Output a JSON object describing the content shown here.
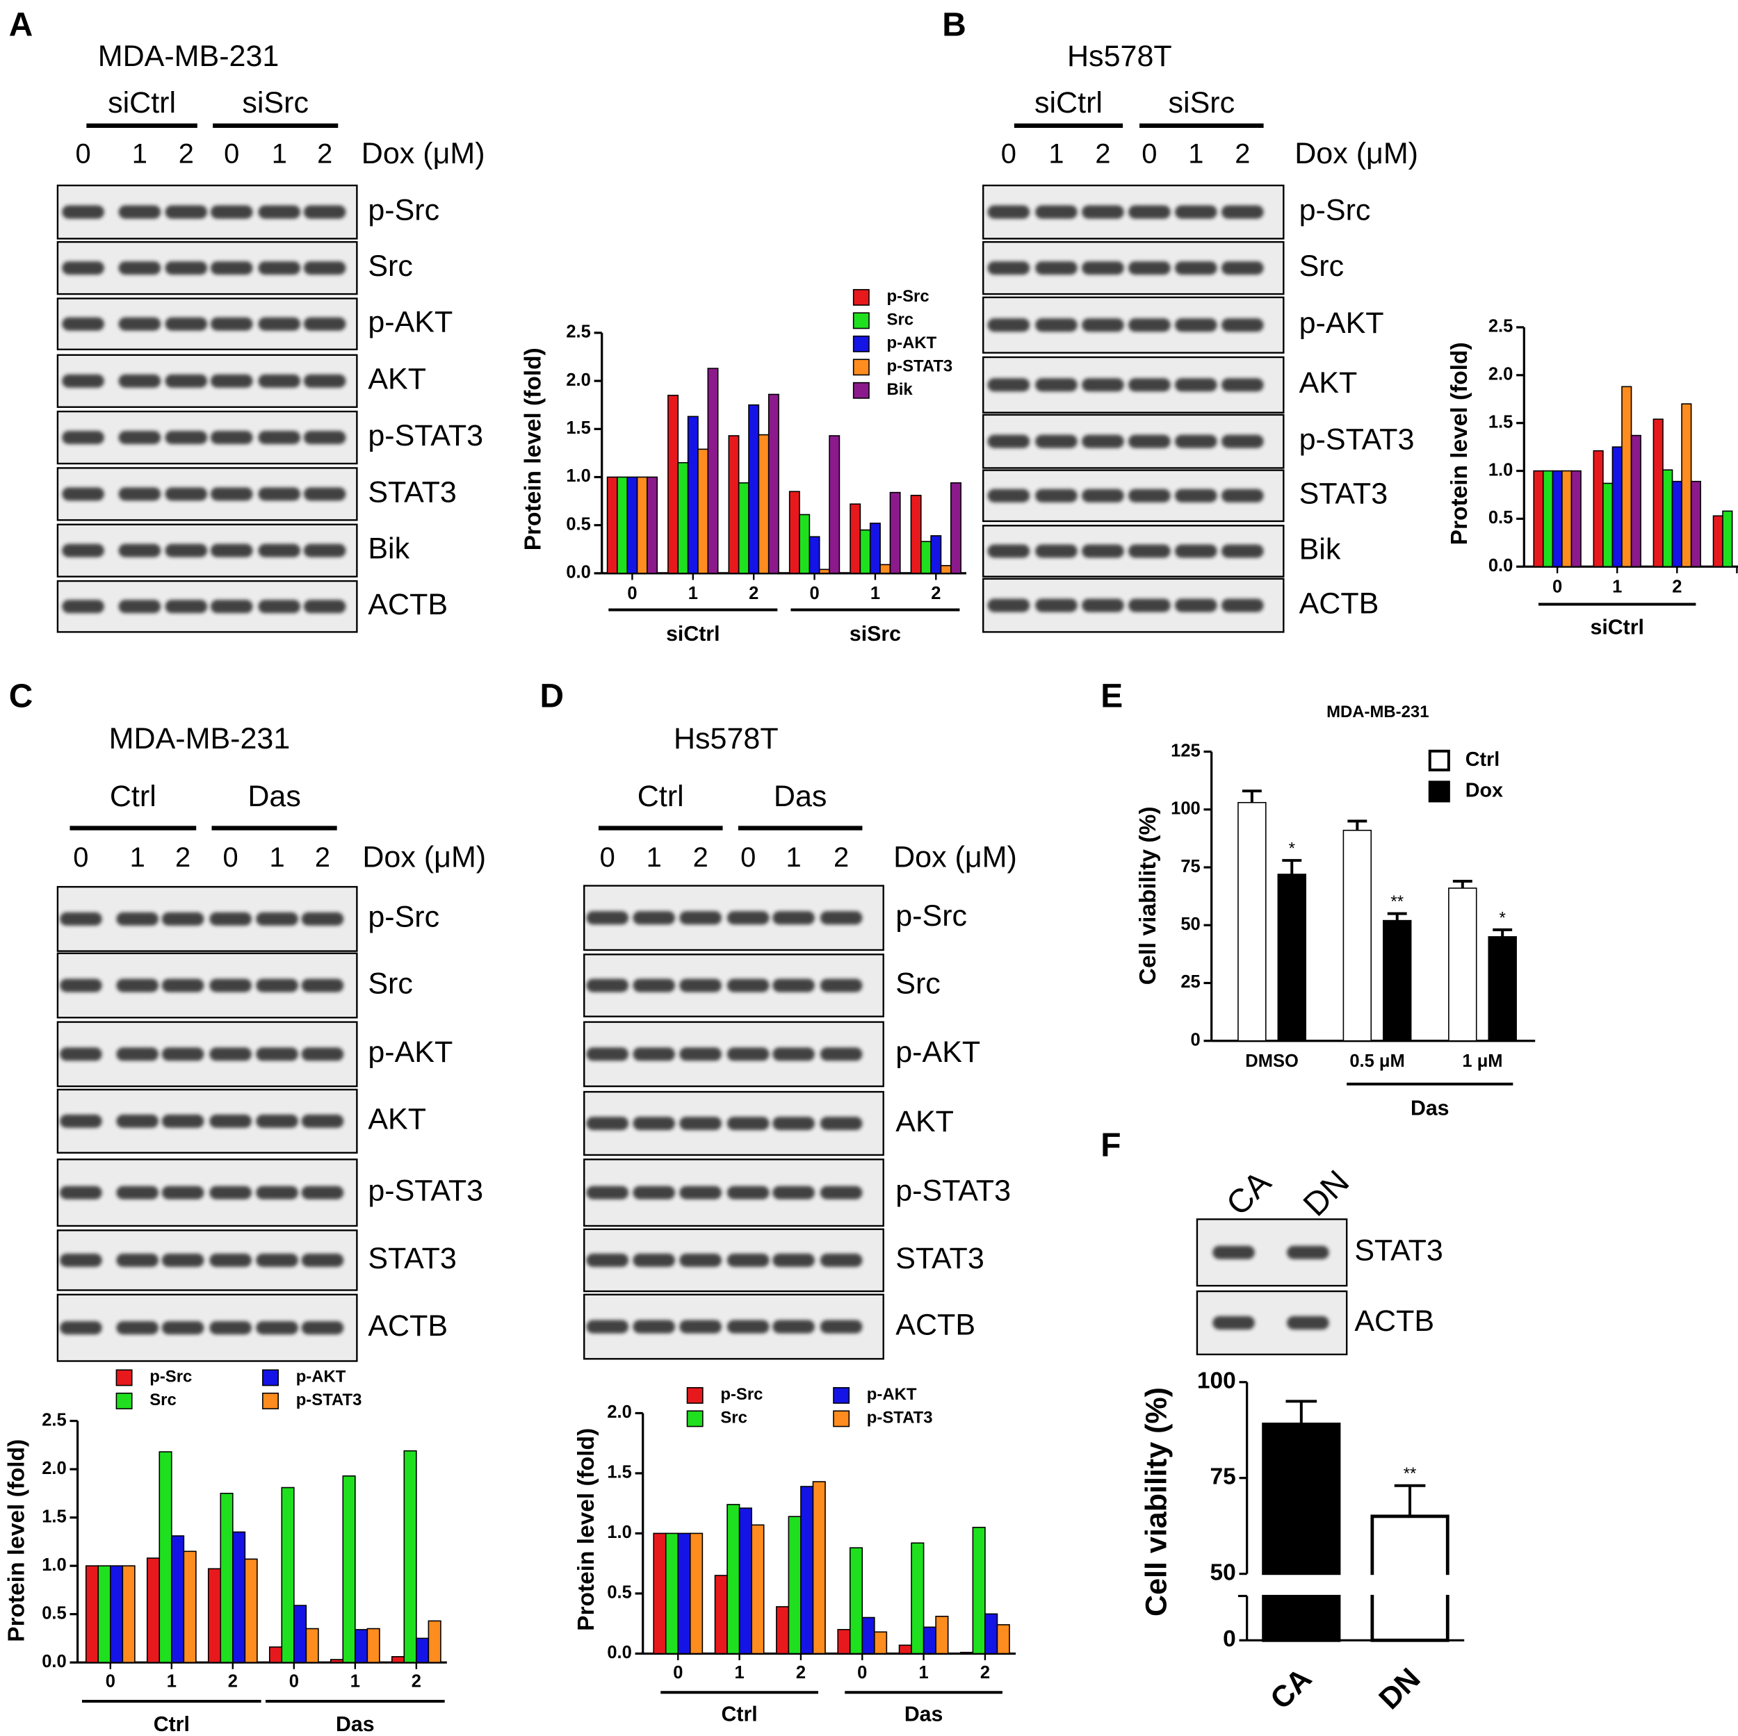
{
  "panel_labels": [
    "A",
    "B",
    "C",
    "D",
    "E",
    "F"
  ],
  "blots": [
    {
      "cell_line": "MDA-MB-231",
      "groups": [
        "siCtrl",
        "siSrc"
      ],
      "lanes": [
        "0",
        "1",
        "2",
        "0",
        "1",
        "2"
      ],
      "dose_label": "Dox (μM)",
      "proteins": [
        "p-Src",
        "Src",
        "p-AKT",
        "AKT",
        "p-STAT3",
        "STAT3",
        "Bik",
        "ACTB"
      ]
    },
    {
      "cell_line": "Hs578T",
      "groups": [
        "siCtrl",
        "siSrc"
      ],
      "lanes": [
        "0",
        "1",
        "2",
        "0",
        "1",
        "2"
      ],
      "dose_label": "Dox (μM)",
      "proteins": [
        "p-Src",
        "Src",
        "p-AKT",
        "AKT",
        "p-STAT3",
        "STAT3",
        "Bik",
        "ACTB"
      ]
    },
    {
      "cell_line": "MDA-MB-231",
      "groups": [
        "Ctrl",
        "Das"
      ],
      "lanes": [
        "0",
        "1",
        "2",
        "0",
        "1",
        "2"
      ],
      "dose_label": "Dox (μM)",
      "proteins": [
        "p-Src",
        "Src",
        "p-AKT",
        "AKT",
        "p-STAT3",
        "STAT3",
        "ACTB"
      ]
    },
    {
      "cell_line": "Hs578T",
      "groups": [
        "Ctrl",
        "Das"
      ],
      "lanes": [
        "0",
        "1",
        "2",
        "0",
        "1",
        "2"
      ],
      "dose_label": "Dox (μM)",
      "proteins": [
        "p-Src",
        "Src",
        "p-AKT",
        "AKT",
        "p-STAT3",
        "STAT3",
        "ACTB"
      ]
    },
    {
      "lanes": [
        "CA",
        "DN"
      ],
      "proteins": [
        "STAT3",
        "ACTB"
      ]
    }
  ],
  "chart_data": [
    {
      "type": "bar",
      "ylabel": "Protein level (fold)",
      "categories": [
        "0",
        "1",
        "2",
        "0",
        "1",
        "2"
      ],
      "groups": [
        {
          "label": "siCtrl",
          "from": 0,
          "to": 2
        },
        {
          "label": "siSrc",
          "from": 3,
          "to": 5
        }
      ],
      "ylim": [
        0,
        2.5
      ],
      "yticks": [
        {
          "value": 0,
          "label": "0.0"
        },
        0.5,
        {
          "value": 1,
          "label": "1.0"
        },
        1.5,
        {
          "value": 2,
          "label": "2.0"
        },
        2.5
      ],
      "series": [
        {
          "name": "p-Src",
          "color": "#e8191c",
          "values": [
            1.0,
            1.85,
            1.43,
            0.85,
            0.72,
            0.81
          ]
        },
        {
          "name": "Src",
          "color": "#1fe01f",
          "values": [
            1.0,
            1.15,
            0.94,
            0.61,
            0.45,
            0.33
          ]
        },
        {
          "name": "p-AKT",
          "color": "#1414e6",
          "values": [
            1.0,
            1.63,
            1.75,
            0.38,
            0.52,
            0.39
          ]
        },
        {
          "name": "p-STAT3",
          "color": "#ff8c1e",
          "values": [
            1.0,
            1.29,
            1.44,
            0.04,
            0.09,
            0.08
          ]
        },
        {
          "name": "Bik",
          "color": "#8c1a8c",
          "values": [
            1.0,
            2.13,
            1.86,
            1.43,
            0.84,
            0.94
          ]
        }
      ]
    },
    {
      "type": "bar",
      "ylabel": "Protein level (fold)",
      "categories": [
        "0",
        "1",
        "2",
        null
      ],
      "groups": [
        {
          "label": "siCtrl",
          "from": 0,
          "to": 2
        }
      ],
      "ylim": [
        0,
        2.5
      ],
      "yticks": [
        {
          "value": 0,
          "label": "0.0"
        },
        0.5,
        {
          "value": 1,
          "label": "1.0"
        },
        1.5,
        {
          "value": 2,
          "label": "2.0"
        },
        2.5
      ],
      "series": [
        {
          "color": "#e8191c",
          "values": [
            1.0,
            1.21,
            1.54,
            0.53
          ]
        },
        {
          "color": "#1fe01f",
          "values": [
            1.0,
            0.87,
            1.01,
            0.58
          ]
        },
        {
          "color": "#1414e6",
          "values": [
            1.0,
            1.25,
            0.89,
            null
          ]
        },
        {
          "color": "#ff8c1e",
          "values": [
            1.0,
            1.88,
            1.7,
            null
          ]
        },
        {
          "color": "#8c1a8c",
          "values": [
            1.0,
            1.37,
            0.89,
            null
          ]
        }
      ]
    },
    {
      "type": "bar",
      "ylabel": "Protein level (fold)",
      "categories": [
        "0",
        "1",
        "2",
        "0",
        "1",
        "2"
      ],
      "groups": [
        {
          "label": "Ctrl",
          "from": 0,
          "to": 2
        },
        {
          "label": "Das",
          "from": 3,
          "to": 5
        }
      ],
      "ylim": [
        0,
        2.5
      ],
      "yticks": [
        {
          "value": 0,
          "label": "0.0"
        },
        0.5,
        {
          "value": 1,
          "label": "1.0"
        },
        1.5,
        {
          "value": 2,
          "label": "2.0"
        },
        2.5
      ],
      "series": [
        {
          "name": "p-Src",
          "color": "#e8191c",
          "values": [
            1.0,
            1.08,
            0.97,
            0.16,
            0.03,
            0.06
          ]
        },
        {
          "name": "Src",
          "color": "#1fe01f",
          "values": [
            1.0,
            2.18,
            1.75,
            1.81,
            1.93,
            2.19
          ]
        },
        {
          "name": "p-AKT",
          "color": "#1414e6",
          "values": [
            1.0,
            1.31,
            1.35,
            0.59,
            0.34,
            0.25
          ]
        },
        {
          "name": "p-STAT3",
          "color": "#ff8c1e",
          "values": [
            1.0,
            1.15,
            1.07,
            0.35,
            0.35,
            0.43
          ]
        }
      ]
    },
    {
      "type": "bar",
      "ylabel": "Protein level (fold)",
      "categories": [
        "0",
        "1",
        "2",
        "0",
        "1",
        "2"
      ],
      "groups": [
        {
          "label": "Ctrl",
          "from": 0,
          "to": 2
        },
        {
          "label": "Das",
          "from": 3,
          "to": 5
        }
      ],
      "ylim": [
        0,
        2.0
      ],
      "yticks": [
        {
          "value": 0,
          "label": "0.0"
        },
        0.5,
        {
          "value": 1,
          "label": "1.0"
        },
        1.5,
        {
          "value": 2,
          "label": "2.0"
        }
      ],
      "series": [
        {
          "name": "p-Src",
          "color": "#e8191c",
          "values": [
            1.0,
            0.65,
            0.39,
            0.2,
            0.07,
            0.01
          ]
        },
        {
          "name": "Src",
          "color": "#1fe01f",
          "values": [
            1.0,
            1.24,
            1.14,
            0.88,
            0.92,
            1.05
          ]
        },
        {
          "name": "p-AKT",
          "color": "#1414e6",
          "values": [
            1.0,
            1.21,
            1.39,
            0.3,
            0.22,
            0.33
          ]
        },
        {
          "name": "p-STAT3",
          "color": "#ff8c1e",
          "values": [
            1.0,
            1.07,
            1.43,
            0.18,
            0.31,
            0.24
          ]
        }
      ]
    },
    {
      "type": "bar",
      "title": "MDA-MB-231",
      "ylabel": "Cell viability (%)",
      "categories": [
        "DMSO",
        "0.5 μM",
        "1 μM"
      ],
      "groups": [
        {
          "label": "Das",
          "from": 1,
          "to": 2
        }
      ],
      "ylim": [
        0,
        125
      ],
      "yticks": [
        0,
        25,
        50,
        75,
        100,
        125
      ],
      "series": [
        {
          "name": "Ctrl",
          "color": "#ffffff",
          "values": [
            103,
            91,
            66
          ],
          "errors": [
            5,
            4,
            3
          ]
        },
        {
          "name": "Dox",
          "color": "#000000",
          "values": [
            72,
            52,
            45
          ],
          "errors": [
            6,
            3,
            3
          ],
          "significance": [
            "*",
            "**",
            "*"
          ]
        }
      ]
    },
    {
      "type": "bar",
      "ylabel": "Cell viability (%)",
      "categories": [
        "CA",
        "DN"
      ],
      "ylim": [
        0,
        100
      ],
      "ybreak": 50,
      "yticks": [
        0,
        50,
        75,
        100
      ],
      "series": [
        {
          "colors": [
            "#000000",
            "#ffffff"
          ],
          "values": [
            89,
            65
          ],
          "errors": [
            6,
            8
          ],
          "significance": [
            null,
            "**"
          ]
        }
      ]
    }
  ]
}
